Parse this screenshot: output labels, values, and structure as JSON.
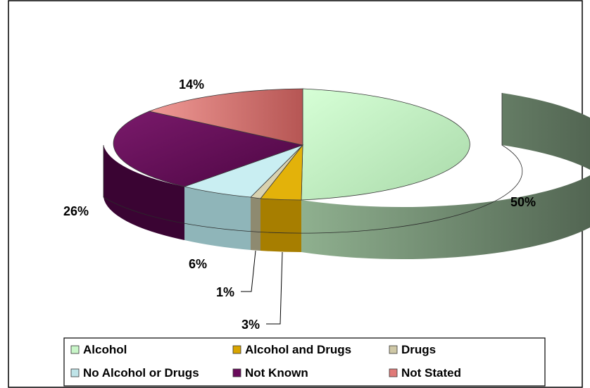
{
  "chart_data": {
    "type": "pie",
    "categories": [
      "Alcohol",
      "Alcohol and Drugs",
      "Drugs",
      "No Alcohol or Drugs",
      "Not Known",
      "Not Stated"
    ],
    "values": [
      50,
      3,
      1,
      6,
      26,
      14
    ],
    "data_labels": [
      "50%",
      "3%",
      "1%",
      "6%",
      "26%",
      "14%"
    ],
    "title": "",
    "legend_position": "bottom",
    "three_d": true,
    "colors": [
      "#c8f5c8",
      "#d9a500",
      "#cfc8a6",
      "#bfe4e8",
      "#6a0b5c",
      "#e07a78"
    ]
  }
}
